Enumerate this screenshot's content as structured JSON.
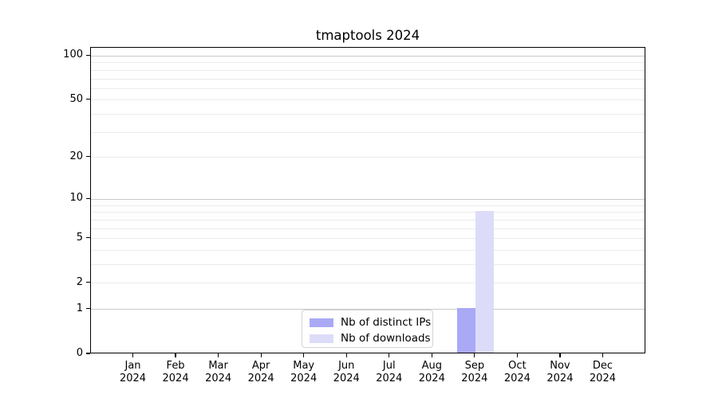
{
  "chart_data": {
    "type": "bar",
    "title": "tmaptools 2024",
    "x_axis": {
      "months": [
        "Jan",
        "Feb",
        "Mar",
        "Apr",
        "May",
        "Jun",
        "Jul",
        "Aug",
        "Sep",
        "Oct",
        "Nov",
        "Dec"
      ],
      "year": "2024"
    },
    "y_axis": {
      "scale": "log10(value+1)",
      "tick_labels": [
        0,
        1,
        2,
        5,
        10,
        20,
        50,
        100
      ],
      "major_gridlines": [
        1,
        10,
        100
      ],
      "minor_gridlines": [
        2,
        3,
        4,
        5,
        6,
        7,
        8,
        9,
        20,
        30,
        40,
        50,
        60,
        70,
        80,
        90
      ],
      "ylim": [
        0,
        113
      ],
      "grid": "horizontal-only"
    },
    "series": [
      {
        "name": "Nb of distinct IPs",
        "color": "#a9a9f6",
        "values": [
          0,
          0,
          0,
          0,
          0,
          0,
          0,
          0,
          1,
          0,
          0,
          0
        ]
      },
      {
        "name": "Nb of downloads",
        "color": "#dcdcf8",
        "values": [
          0,
          0,
          0,
          0,
          0,
          0,
          0,
          0,
          8,
          0,
          0,
          0
        ]
      }
    ],
    "legend": {
      "position": "bottom-center"
    }
  },
  "colors": {
    "background": "#ffffff",
    "axis": "#000000",
    "grid_major": "#c9c9c9",
    "grid_minor": "#ebebeb",
    "legend_border": "#d4d4d4"
  }
}
